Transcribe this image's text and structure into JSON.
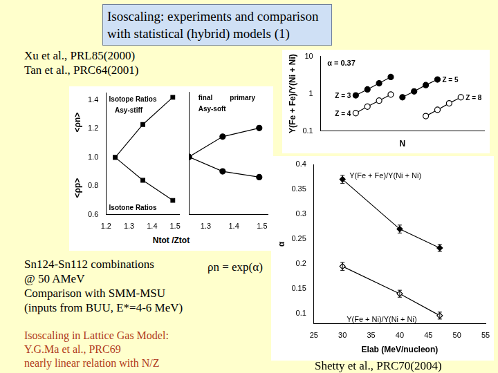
{
  "title": [
    "Isoscaling: experiments and comparison",
    "with statistical (hybrid) models (1)"
  ],
  "references": [
    "Xu et al., PRL85(2000)",
    "Tan et al., PRC64(2001)"
  ],
  "notes": [
    "Sn124-Sn112 combinations",
    "@ 50 AMeV",
    "Comparison with SMM-MSU",
    "(inputs from BUU, E*=4-6 MeV)"
  ],
  "formula": "ρn = exp(α)",
  "lattice_gas": [
    "Isoscaling in Lattice Gas Model:",
    "Y.G.Ma et al., PRC69",
    "nearly linear relation with N/Z"
  ],
  "credit": "Shetty et al., PRC70(2004)",
  "chart_data": [
    {
      "type": "line",
      "x": [
        1.24,
        1.36,
        1.49
      ],
      "series": [
        {
          "color": "#000000",
          "marker": "square",
          "values": [
            1.0,
            1.23,
            1.42
          ]
        },
        {
          "color": "#000000",
          "marker": "square",
          "values": [
            1.0,
            0.84,
            0.7
          ]
        }
      ],
      "xlim": [
        1.2,
        1.52
      ],
      "xticks": [
        1.2,
        1.3,
        1.4,
        1.5
      ],
      "ylim": [
        0.6,
        1.45
      ],
      "yticks": [
        0.6,
        0.8,
        {
          "value": 1,
          "label": "1.0"
        },
        1.2,
        1.4
      ],
      "x_label": "Ntot /Ztot",
      "y_labels": [
        "<ρn>",
        "<ρp>"
      ],
      "annotations": [
        "Isotope Ratios",
        "Asy-stiff",
        "Isotone Ratios"
      ],
      "grid": false
    },
    {
      "type": "line",
      "x": [
        1.24,
        1.36,
        1.49
      ],
      "series": [
        {
          "color": "#000000",
          "marker": "circle",
          "values": [
            1.0,
            1.14,
            1.2
          ]
        },
        {
          "color": "#000000",
          "marker": "circle",
          "values": [
            1.0,
            0.9,
            0.86
          ]
        }
      ],
      "xlim": [
        1.24,
        1.52
      ],
      "xticks": [
        1.3,
        1.4,
        1.5
      ],
      "ylim": [
        0.6,
        1.45
      ],
      "yticks": [
        0.6,
        0.8,
        {
          "value": 1,
          "label": "1.0"
        },
        1.2,
        1.4
      ],
      "tick_labels": "x",
      "annotations": [
        "final",
        "primary",
        "Asy-soft"
      ],
      "grid": false
    },
    {
      "type": "line",
      "series": [
        {
          "name": "Z = 3",
          "color": "#000000",
          "marker": "circle",
          "x": [
            3,
            4,
            5,
            6
          ],
          "values": [
            0.9,
            1.3,
            1.9,
            2.8
          ]
        },
        {
          "name": "Z = 4",
          "color": "#000000",
          "marker": "open_circle",
          "x": [
            3,
            4,
            5,
            6
          ],
          "values": [
            0.3,
            0.45,
            0.65,
            0.95
          ]
        },
        {
          "name": "Z = 5",
          "color": "#000000",
          "marker": "circle",
          "x": [
            7,
            8,
            9,
            10
          ],
          "values": [
            0.8,
            1.15,
            1.7,
            2.4
          ]
        },
        {
          "name": "Z = 8",
          "color": "#000000",
          "marker": "open_circle",
          "x": [
            9,
            10,
            11,
            12
          ],
          "values": [
            0.25,
            0.37,
            0.55,
            0.8
          ]
        }
      ],
      "xlim": [
        0,
        14
      ],
      "ylim": [
        0.1,
        10
      ],
      "yticks": [
        0.1,
        1,
        10
      ],
      "log": "y",
      "tick_labels": "y",
      "x_label": "N",
      "y_label": "Y(Fe + Fe)/Y(Ni + Ni)",
      "annotations": [
        "α = 0.37"
      ],
      "grid": false
    },
    {
      "type": "line",
      "x": [
        30,
        40,
        47
      ],
      "series": [
        {
          "name": "Y(Fe + Fe)/Y(Ni + Ni)",
          "color": "#000000",
          "marker": "diamond",
          "values": [
            0.37,
            0.27,
            0.232
          ],
          "errors": [
            0.008,
            0.008,
            0.007
          ]
        },
        {
          "name": "Y(Fe + Ni)/Y(Ni + Ni)",
          "color": "#000000",
          "marker": "open_diamond",
          "values": [
            0.195,
            0.14,
            0.096
          ],
          "errors": [
            0.008,
            0.007,
            0.007
          ]
        }
      ],
      "xlim": [
        25,
        55
      ],
      "xticks": [
        25,
        30,
        35,
        40,
        45,
        50,
        55
      ],
      "ylim": [
        0.08,
        0.4
      ],
      "yticks": [
        0.1,
        0.15,
        0.2,
        0.25,
        0.3,
        0.35,
        0.4
      ],
      "x_label": "Elab (MeV/nucleon)",
      "y_label": "α",
      "grid": false
    }
  ]
}
